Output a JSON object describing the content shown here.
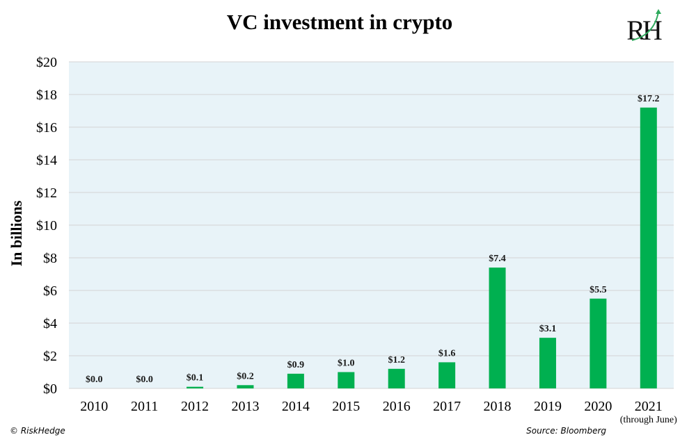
{
  "chart_data": {
    "type": "bar",
    "title": "VC investment in crypto",
    "ylabel": "In billions",
    "xlabel": "",
    "categories": [
      "2010",
      "2011",
      "2012",
      "2013",
      "2014",
      "2015",
      "2016",
      "2017",
      "2018",
      "2019",
      "2020",
      "2021"
    ],
    "category_sublabels": {
      "2021": "(through June)"
    },
    "values": [
      0.0,
      0.0,
      0.1,
      0.2,
      0.9,
      1.0,
      1.2,
      1.6,
      7.4,
      3.1,
      5.5,
      17.2
    ],
    "data_labels": [
      "$0.0",
      "$0.0",
      "$0.1",
      "$0.2",
      "$0.9",
      "$1.0",
      "$1.2",
      "$1.6",
      "$7.4",
      "$3.1",
      "$5.5",
      "$17.2"
    ],
    "yticks": [
      "$0",
      "$2",
      "$4",
      "$6",
      "$8",
      "$10",
      "$12",
      "$14",
      "$16",
      "$18",
      "$20"
    ],
    "ylim": [
      0,
      20
    ],
    "grid": true,
    "legend": "none",
    "colors": {
      "bar": "#00b050",
      "plot_background": "#e8f3f8",
      "grid": "#d3d3d3"
    }
  },
  "footer": {
    "left": "© RiskHedge",
    "right": "Source: Bloomberg"
  },
  "logo": {
    "text": "RH",
    "colors": {
      "letters": "#111111",
      "arrow": "#2eaa5c"
    }
  }
}
